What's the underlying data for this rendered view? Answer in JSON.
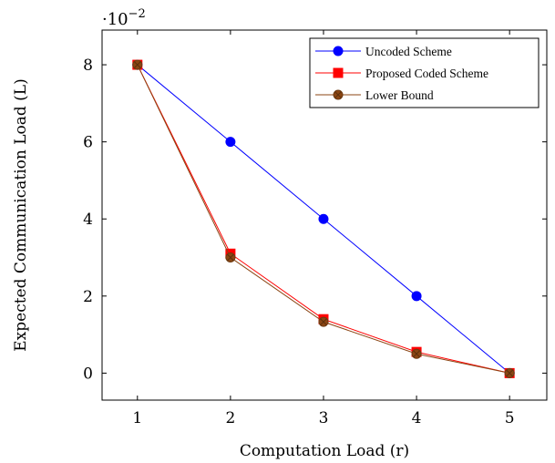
{
  "chart_data": {
    "type": "line",
    "xlabel": "Computation Load (r)",
    "ylabel": "Expected Communication Load (L)",
    "scale_label": "·10",
    "scale_exponent": "−2",
    "x": [
      1,
      2,
      3,
      4,
      5
    ],
    "xlim": [
      0.62,
      5.4
    ],
    "ylim": [
      -0.7,
      8.9
    ],
    "x_ticks": [
      1,
      2,
      3,
      4,
      5
    ],
    "y_ticks": [
      0,
      2,
      4,
      6,
      8
    ],
    "grid": false,
    "legend_position": "top-right",
    "series": [
      {
        "name": "Uncoded Scheme",
        "values": [
          8,
          6,
          4,
          2,
          0
        ],
        "color": "#0000ff",
        "marker": "circle"
      },
      {
        "name": "Proposed Coded Scheme",
        "values": [
          8,
          3.1,
          1.4,
          0.55,
          0
        ],
        "color": "#ff0000",
        "marker": "square"
      },
      {
        "name": "Lower Bound",
        "values": [
          8,
          3.0,
          1.33,
          0.5,
          0
        ],
        "color": "#8b4513",
        "marker": "circle-x"
      }
    ]
  }
}
